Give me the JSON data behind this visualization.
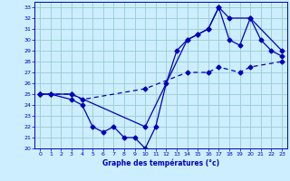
{
  "title": "Graphe des températures (°c)",
  "bg_color": "#cceeff",
  "line_color": "#0000bb",
  "grid_color": "#99cccc",
  "xlim": [
    -0.5,
    23.5
  ],
  "ylim": [
    20,
    33.5
  ],
  "xticks": [
    0,
    1,
    2,
    3,
    4,
    5,
    6,
    7,
    8,
    9,
    10,
    11,
    12,
    13,
    14,
    15,
    16,
    17,
    18,
    19,
    20,
    21,
    22,
    23
  ],
  "yticks": [
    20,
    21,
    22,
    23,
    24,
    25,
    26,
    27,
    28,
    29,
    30,
    31,
    32,
    33
  ],
  "line1_solid": {
    "x": [
      0,
      1,
      3,
      4,
      5,
      6,
      7,
      8,
      9,
      10,
      11,
      12,
      13,
      14,
      15,
      16,
      17,
      18,
      19,
      20,
      21,
      22,
      23
    ],
    "y": [
      25,
      25,
      24.5,
      24,
      22,
      21.5,
      22,
      21,
      21,
      20,
      22,
      26,
      29,
      30,
      30.5,
      31,
      33,
      30,
      29.5,
      32,
      30,
      29,
      28.5
    ]
  },
  "line2_dashed": {
    "x": [
      0,
      1,
      3,
      4,
      10,
      14,
      16,
      17,
      19,
      20,
      23
    ],
    "y": [
      25,
      25,
      25,
      24.5,
      25.5,
      27,
      27,
      27.5,
      27,
      27.5,
      28
    ]
  },
  "line3_solid": {
    "x": [
      0,
      3,
      10,
      14,
      15,
      16,
      17,
      18,
      20,
      23
    ],
    "y": [
      25,
      25,
      22,
      30,
      30.5,
      31,
      33,
      32,
      32,
      29
    ]
  }
}
